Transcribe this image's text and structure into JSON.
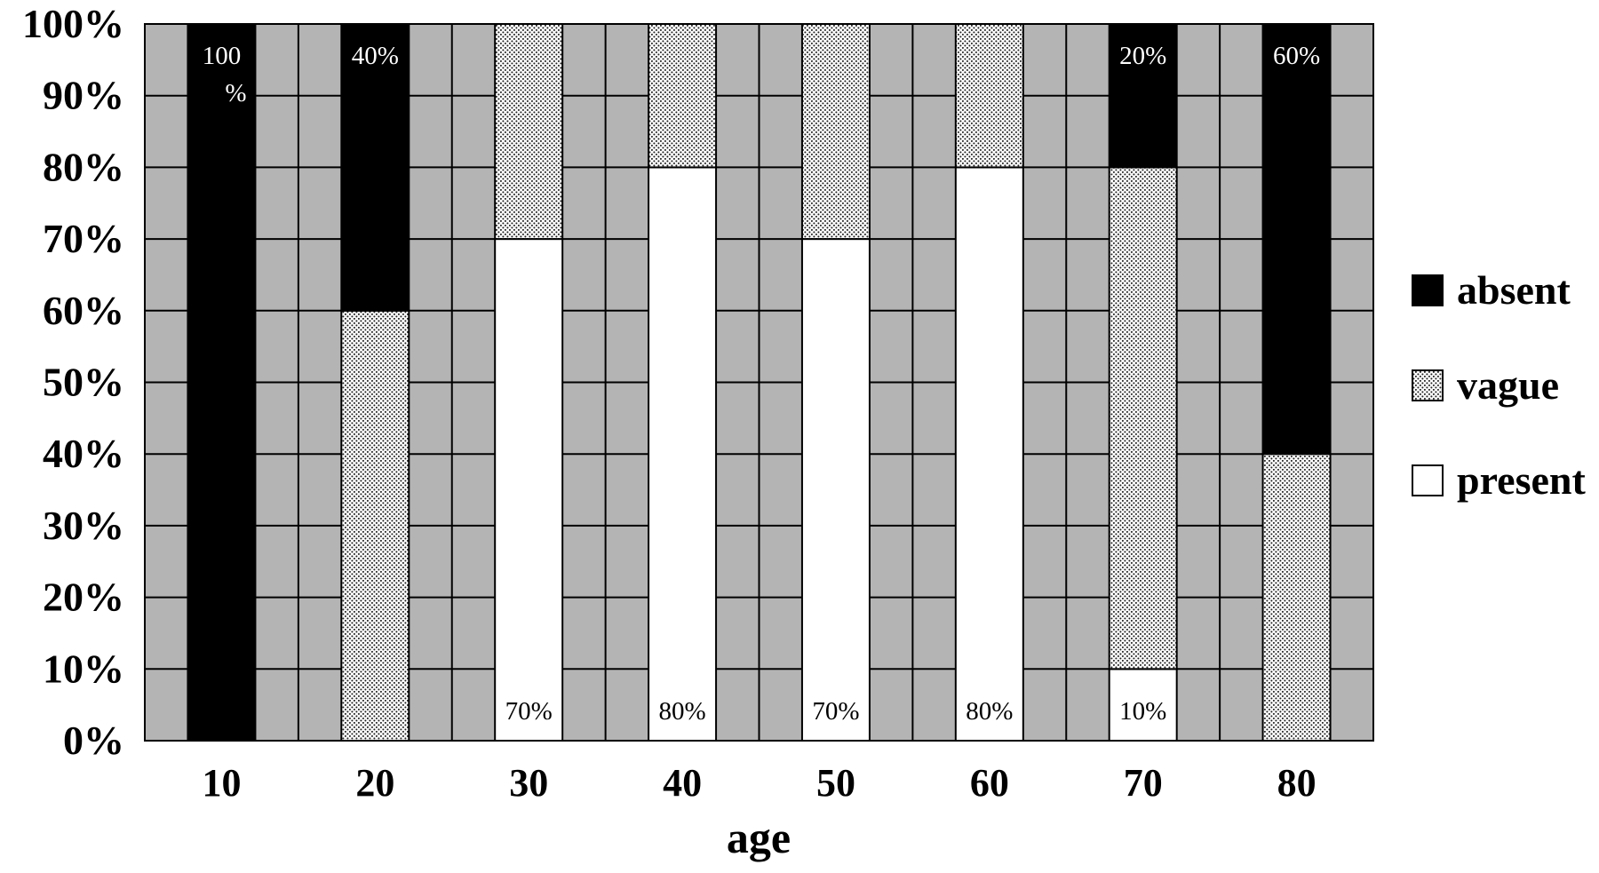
{
  "chart_data": {
    "type": "bar",
    "stacked": true,
    "normalized": true,
    "categories": [
      "10",
      "20",
      "30",
      "40",
      "50",
      "60",
      "70",
      "80"
    ],
    "series": [
      {
        "name": "present",
        "values": [
          0,
          0,
          70,
          80,
          70,
          80,
          10,
          0
        ],
        "color": "#ffffff",
        "pattern": "solid"
      },
      {
        "name": "vague",
        "values": [
          0,
          60,
          30,
          20,
          30,
          20,
          70,
          40
        ],
        "color": "#ffffff",
        "pattern": "dots"
      },
      {
        "name": "absent",
        "values": [
          100,
          40,
          0,
          0,
          0,
          0,
          20,
          60
        ],
        "color": "#000000",
        "pattern": "solid"
      }
    ],
    "data_labels": [
      {
        "category": "10",
        "series": "absent",
        "lines": [
          "100",
          "%"
        ]
      },
      {
        "category": "20",
        "series": "absent",
        "lines": [
          "40%"
        ]
      },
      {
        "category": "30",
        "series": "present",
        "lines": [
          "70%"
        ]
      },
      {
        "category": "40",
        "series": "present",
        "lines": [
          "80%"
        ]
      },
      {
        "category": "50",
        "series": "present",
        "lines": [
          "70%"
        ]
      },
      {
        "category": "60",
        "series": "present",
        "lines": [
          "80%"
        ]
      },
      {
        "category": "70",
        "series": "present",
        "lines": [
          "10%"
        ]
      },
      {
        "category": "70",
        "series": "absent",
        "lines": [
          "20%"
        ]
      },
      {
        "category": "80",
        "series": "absent",
        "lines": [
          "60%"
        ]
      }
    ],
    "y_ticks": [
      "0%",
      "10%",
      "20%",
      "30%",
      "40%",
      "50%",
      "60%",
      "70%",
      "80%",
      "90%",
      "100%"
    ],
    "title": "",
    "xlabel": "age",
    "ylabel": "",
    "ylim": [
      0,
      100
    ],
    "grid": true,
    "plot_background": "#b4b4b4",
    "legend": {
      "placement": "right",
      "order": [
        "absent",
        "vague",
        "present"
      ]
    }
  }
}
